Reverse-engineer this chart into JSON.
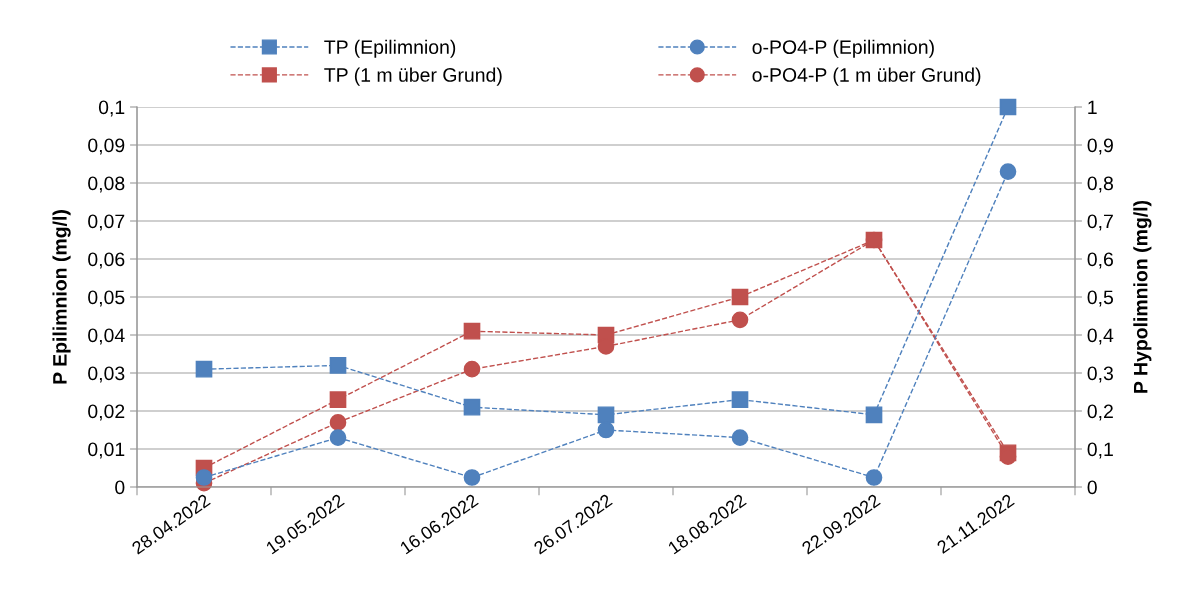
{
  "chart_data": {
    "type": "line",
    "ylabel": "P Epilimnion (mg/l)",
    "y2label": "P Hypolimnion (mg/l)",
    "categories": [
      "28.04.2022",
      "19.05.2022",
      "16.06.2022",
      "26.07.2022",
      "18.08.2022",
      "22.09.2022",
      "21.11.2022"
    ],
    "series": [
      {
        "name": "TP (Epilimnion)",
        "color": "#4f81bd",
        "marker": "square",
        "values": [
          0.031,
          0.032,
          0.021,
          0.019,
          0.023,
          0.019,
          0.1
        ]
      },
      {
        "name": "o-PO4-P (Epilimnion)",
        "color": "#4f81bd",
        "marker": "circle",
        "values": [
          0.0025,
          0.013,
          0.0025,
          0.015,
          0.013,
          0.0025,
          0.083
        ]
      },
      {
        "name": "TP (1 m über Grund)",
        "color": "#c0504d",
        "marker": "square",
        "axis": "y2",
        "values": [
          0.05,
          0.23,
          0.41,
          0.4,
          0.5,
          0.65,
          0.09
        ]
      },
      {
        "name": "o-PO4-P (1 m über Grund)",
        "color": "#c0504d",
        "marker": "circle",
        "axis": "y2",
        "values": [
          0.01,
          0.17,
          0.31,
          0.37,
          0.44,
          0.65,
          0.08
        ]
      }
    ],
    "ylim": [
      0,
      0.1
    ],
    "yticks": [
      0,
      {
        "value": 0.01,
        "label": "0,01"
      },
      {
        "value": 0.02,
        "label": "0,02"
      },
      {
        "value": 0.03,
        "label": "0,03"
      },
      {
        "value": 0.04,
        "label": "0,04"
      },
      {
        "value": 0.05,
        "label": "0,05"
      },
      {
        "value": 0.06,
        "label": "0,06"
      },
      {
        "value": 0.07,
        "label": "0,07"
      },
      {
        "value": 0.08,
        "label": "0,08"
      },
      {
        "value": 0.09,
        "label": "0,09"
      },
      {
        "value": 0.1,
        "label": "0,1"
      }
    ],
    "y2lim": [
      0,
      1
    ],
    "y2ticks": [
      0,
      {
        "value": 0.1,
        "label": "0,1"
      },
      {
        "value": 0.2,
        "label": "0,2"
      },
      {
        "value": 0.3,
        "label": "0,3"
      },
      {
        "value": 0.4,
        "label": "0,4"
      },
      {
        "value": 0.5,
        "label": "0,5"
      },
      {
        "value": 0.6,
        "label": "0,6"
      },
      {
        "value": 0.7,
        "label": "0,7"
      },
      {
        "value": 0.8,
        "label": "0,8"
      },
      {
        "value": 0.9,
        "label": "0,9"
      },
      1
    ],
    "grid": "y",
    "legend": "top",
    "line_style": "dashed"
  }
}
